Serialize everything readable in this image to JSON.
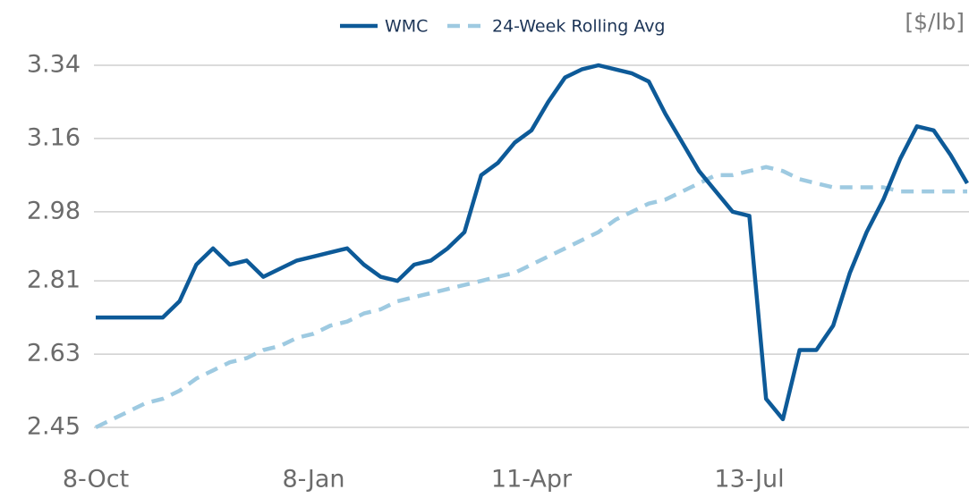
{
  "chart_data": {
    "type": "line",
    "unit_label": "[$/lb]",
    "categories": [
      "8-Oct",
      null,
      null,
      null,
      null,
      null,
      null,
      null,
      null,
      null,
      null,
      null,
      null,
      "8-Jan",
      null,
      null,
      null,
      null,
      null,
      null,
      null,
      null,
      null,
      null,
      null,
      null,
      "11-Apr",
      null,
      null,
      null,
      null,
      null,
      null,
      null,
      null,
      null,
      null,
      null,
      null,
      "13-Jul",
      null,
      null,
      null,
      null,
      null,
      null,
      null,
      null,
      null,
      null,
      null,
      null,
      null
    ],
    "series": [
      {
        "name": "WMC",
        "color": "#0d5a98",
        "dashed": false,
        "values": [
          2.72,
          2.72,
          2.72,
          2.72,
          2.72,
          2.76,
          2.85,
          2.89,
          2.85,
          2.86,
          2.82,
          2.84,
          2.86,
          2.87,
          2.88,
          2.89,
          2.85,
          2.82,
          2.81,
          2.85,
          2.86,
          2.89,
          2.93,
          3.07,
          3.1,
          3.15,
          3.18,
          3.25,
          3.31,
          3.33,
          3.34,
          3.33,
          3.32,
          3.3,
          3.22,
          3.15,
          3.08,
          3.03,
          2.98,
          2.97,
          2.52,
          2.47,
          2.64,
          2.64,
          2.7,
          2.83,
          2.93,
          3.01,
          3.11,
          3.19,
          3.18,
          3.12,
          3.05
        ]
      },
      {
        "name": "24-Week Rolling Avg",
        "color": "#9ecae1",
        "dashed": true,
        "values": [
          2.45,
          2.47,
          2.49,
          2.51,
          2.52,
          2.54,
          2.57,
          2.59,
          2.61,
          2.62,
          2.64,
          2.65,
          2.67,
          2.68,
          2.7,
          2.71,
          2.73,
          2.74,
          2.76,
          2.77,
          2.78,
          2.79,
          2.8,
          2.81,
          2.82,
          2.83,
          2.85,
          2.87,
          2.89,
          2.91,
          2.93,
          2.96,
          2.98,
          3.0,
          3.01,
          3.03,
          3.05,
          3.07,
          3.07,
          3.08,
          3.09,
          3.08,
          3.06,
          3.05,
          3.04,
          3.04,
          3.04,
          3.04,
          3.03,
          3.03,
          3.03,
          3.03,
          3.03
        ]
      }
    ],
    "ylim": [
      2.45,
      3.34
    ],
    "yticks": [
      {
        "value": 2.45,
        "label": "2.45"
      },
      {
        "value": 2.63,
        "label": "2.63"
      },
      {
        "value": 2.81,
        "label": "2.81"
      },
      {
        "value": 2.98,
        "label": "2.98"
      },
      {
        "value": 3.16,
        "label": "3.16"
      },
      {
        "value": 3.34,
        "label": "3.34"
      }
    ],
    "grid": true,
    "legend": "top"
  }
}
